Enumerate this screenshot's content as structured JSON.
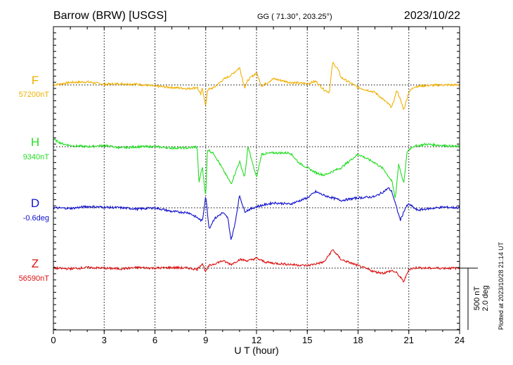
{
  "header": {
    "station": "Barrow (BRW)  [USGS]",
    "coords": "GG ( 71.30°, 203.25°)",
    "date": "2023/10/22"
  },
  "footer": {
    "plotted": "Plotted at 2023/10/28 21:14 UT"
  },
  "chart_data": {
    "type": "line",
    "xlabel": "U T (hour)",
    "xlim": [
      0,
      24
    ],
    "xticks": [
      "0",
      "3",
      "6",
      "9",
      "12",
      "15",
      "18",
      "21",
      "24"
    ],
    "grid": true,
    "scale_bar": {
      "label1": "500 nT",
      "label2": "2.0 deg"
    },
    "series": [
      {
        "name": "F",
        "baseline_label": "57200nT",
        "color": "#f0b000",
        "points": [
          [
            0,
            0
          ],
          [
            0.5,
            10
          ],
          [
            1,
            20
          ],
          [
            2,
            25
          ],
          [
            3,
            5
          ],
          [
            4,
            10
          ],
          [
            5,
            5
          ],
          [
            6,
            -10
          ],
          [
            7,
            -20
          ],
          [
            8,
            -30
          ],
          [
            8.5,
            -20
          ],
          [
            8.7,
            -80
          ],
          [
            8.8,
            -20
          ],
          [
            9,
            -180
          ],
          [
            9.1,
            -40
          ],
          [
            9.5,
            -20
          ],
          [
            10,
            40
          ],
          [
            10.5,
            80
          ],
          [
            11,
            140
          ],
          [
            11.3,
            -20
          ],
          [
            11.5,
            40
          ],
          [
            12,
            100
          ],
          [
            12.3,
            -10
          ],
          [
            13,
            50
          ],
          [
            14,
            20
          ],
          [
            15,
            10
          ],
          [
            15.5,
            30
          ],
          [
            16,
            -40
          ],
          [
            16.3,
            -60
          ],
          [
            16.5,
            180
          ],
          [
            16.8,
            130
          ],
          [
            17,
            60
          ],
          [
            18,
            -20
          ],
          [
            19,
            -60
          ],
          [
            19.5,
            -120
          ],
          [
            20,
            -180
          ],
          [
            20.3,
            -40
          ],
          [
            20.7,
            -200
          ],
          [
            21,
            -60
          ],
          [
            21.3,
            -15
          ],
          [
            22,
            -5
          ],
          [
            23,
            0
          ],
          [
            24,
            0
          ]
        ]
      },
      {
        "name": "H",
        "baseline_label": "9340nT",
        "color": "#22dd22",
        "points": [
          [
            0,
            60
          ],
          [
            0.5,
            25
          ],
          [
            1,
            10
          ],
          [
            2,
            0
          ],
          [
            3,
            10
          ],
          [
            4,
            -10
          ],
          [
            5,
            0
          ],
          [
            6,
            0
          ],
          [
            7,
            -10
          ],
          [
            8,
            -10
          ],
          [
            8.4,
            0
          ],
          [
            8.5,
            -20
          ],
          [
            8.6,
            -290
          ],
          [
            8.8,
            -160
          ],
          [
            9,
            -410
          ],
          [
            9.1,
            -20
          ],
          [
            9.5,
            -60
          ],
          [
            10,
            -180
          ],
          [
            10.5,
            -300
          ],
          [
            11,
            -120
          ],
          [
            11.3,
            -250
          ],
          [
            11.5,
            0
          ],
          [
            12,
            -250
          ],
          [
            12.3,
            -60
          ],
          [
            13,
            -50
          ],
          [
            14,
            -50
          ],
          [
            14.5,
            -130
          ],
          [
            15,
            -170
          ],
          [
            15.5,
            -210
          ],
          [
            16,
            -230
          ],
          [
            16.5,
            -200
          ],
          [
            17,
            -170
          ],
          [
            18,
            -60
          ],
          [
            19,
            -130
          ],
          [
            19.5,
            -180
          ],
          [
            20,
            -280
          ],
          [
            20.2,
            -420
          ],
          [
            20.4,
            -140
          ],
          [
            20.7,
            -300
          ],
          [
            20.9,
            -40
          ],
          [
            21.2,
            0
          ],
          [
            22,
            20
          ],
          [
            23,
            10
          ],
          [
            24,
            0
          ]
        ]
      },
      {
        "name": "D",
        "baseline_label": "-0.6deg",
        "color": "#1010cc",
        "points": [
          [
            0,
            0
          ],
          [
            1,
            -5
          ],
          [
            2,
            10
          ],
          [
            3,
            5
          ],
          [
            4,
            0
          ],
          [
            5,
            -10
          ],
          [
            6,
            0
          ],
          [
            7,
            -30
          ],
          [
            8,
            -40
          ],
          [
            8.5,
            -80
          ],
          [
            8.8,
            -110
          ],
          [
            9,
            100
          ],
          [
            9.2,
            -170
          ],
          [
            9.5,
            -90
          ],
          [
            10,
            -40
          ],
          [
            10.3,
            -80
          ],
          [
            10.5,
            -260
          ],
          [
            10.7,
            -150
          ],
          [
            11,
            100
          ],
          [
            11.3,
            -30
          ],
          [
            12,
            10
          ],
          [
            13,
            40
          ],
          [
            14,
            30
          ],
          [
            15,
            80
          ],
          [
            15.5,
            130
          ],
          [
            16,
            100
          ],
          [
            17,
            60
          ],
          [
            18,
            80
          ],
          [
            19,
            90
          ],
          [
            19.5,
            130
          ],
          [
            19.8,
            160
          ],
          [
            20,
            130
          ],
          [
            20.3,
            -10
          ],
          [
            20.5,
            -100
          ],
          [
            20.8,
            0
          ],
          [
            21,
            30
          ],
          [
            21.5,
            -20
          ],
          [
            22,
            -10
          ],
          [
            23,
            5
          ],
          [
            24,
            0
          ]
        ]
      },
      {
        "name": "Z",
        "baseline_label": "56590nT",
        "color": "#dd1111",
        "points": [
          [
            0,
            0
          ],
          [
            1,
            -5
          ],
          [
            2,
            5
          ],
          [
            3,
            0
          ],
          [
            4,
            -5
          ],
          [
            5,
            5
          ],
          [
            6,
            0
          ],
          [
            7,
            5
          ],
          [
            8,
            0
          ],
          [
            8.5,
            -10
          ],
          [
            8.8,
            40
          ],
          [
            9,
            -30
          ],
          [
            9.2,
            20
          ],
          [
            10,
            60
          ],
          [
            10.5,
            30
          ],
          [
            11,
            70
          ],
          [
            11.5,
            60
          ],
          [
            12,
            80
          ],
          [
            12.5,
            50
          ],
          [
            13,
            40
          ],
          [
            14,
            30
          ],
          [
            15,
            20
          ],
          [
            16,
            50
          ],
          [
            16.5,
            150
          ],
          [
            17,
            70
          ],
          [
            18,
            20
          ],
          [
            19,
            -30
          ],
          [
            19.5,
            -40
          ],
          [
            20,
            -20
          ],
          [
            20.3,
            -40
          ],
          [
            20.7,
            -110
          ],
          [
            21,
            -10
          ],
          [
            21.5,
            5
          ],
          [
            22,
            0
          ],
          [
            23,
            0
          ],
          [
            24,
            0
          ]
        ]
      }
    ]
  }
}
